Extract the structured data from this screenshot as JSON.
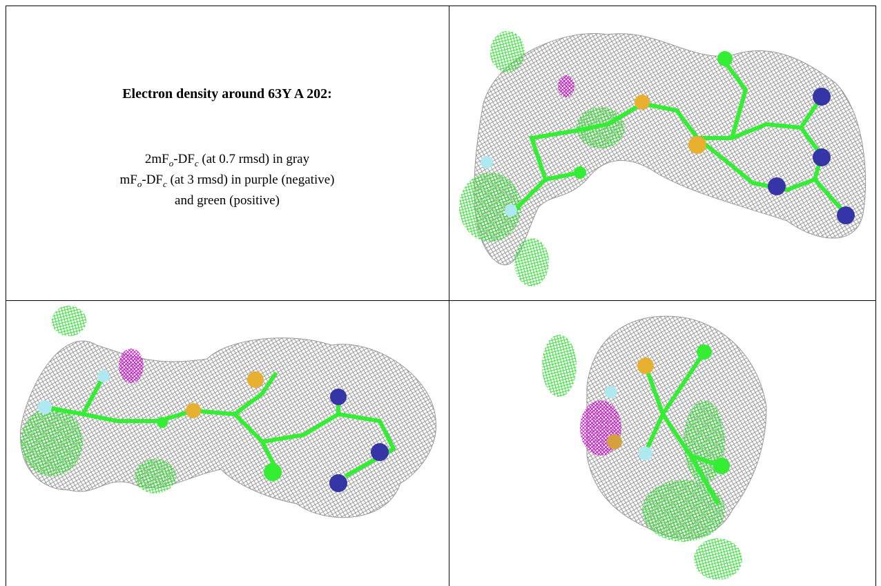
{
  "panel": {
    "title": "Electron density around 63Y A 202:",
    "lines": [
      [
        "2mF",
        "o",
        "-DF",
        "c",
        " (at 0.7 rmsd) in gray"
      ],
      [
        "mF",
        "o",
        "-DF",
        "c",
        " (at 3 rmsd) in purple (negative)"
      ],
      [
        "and green (positive)"
      ]
    ]
  }
}
